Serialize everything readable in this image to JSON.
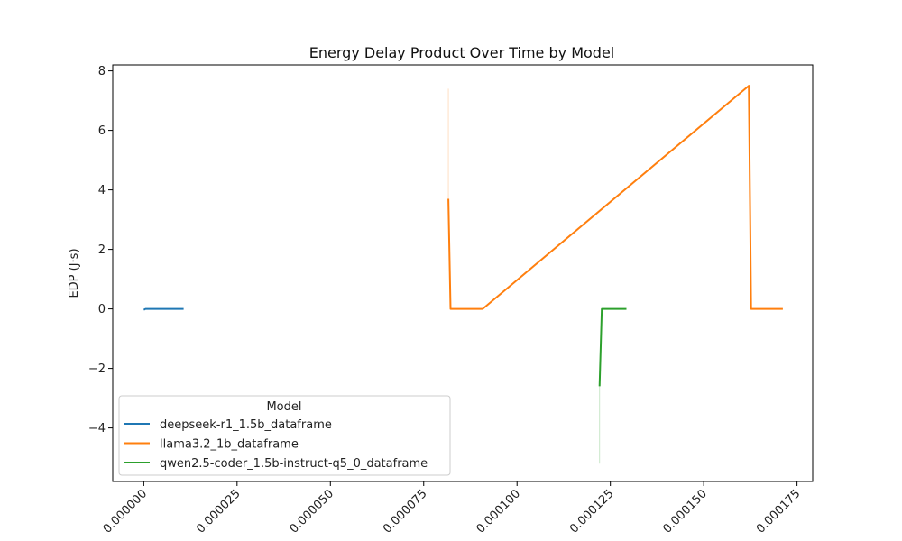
{
  "chart_data": {
    "type": "line",
    "title": "Energy Delay Product Over Time by Model",
    "xlabel": "",
    "ylabel": "EDP (J·s)",
    "xlim": [
      -8.3e-06,
      0.0001792
    ],
    "ylim": [
      -5.8,
      8.2
    ],
    "x_ticks": [
      0,
      2.5e-05,
      5e-05,
      7.5e-05,
      0.0001,
      0.000125,
      0.00015,
      0.000175
    ],
    "x_tick_labels": [
      "0.000000",
      "0.000025",
      "0.000050",
      "0.000075",
      "0.000100",
      "0.000125",
      "0.000150",
      "0.000175"
    ],
    "y_ticks": [
      -4,
      -2,
      0,
      2,
      4,
      6,
      8
    ],
    "y_tick_labels": [
      "−4",
      "−2",
      "0",
      "2",
      "4",
      "6",
      "8"
    ],
    "grid": false,
    "legend": {
      "title": "Model",
      "placement": "lower-left"
    },
    "series": [
      {
        "name": "deepseek-r1_1.5b_dataframe",
        "color": "#1f77b4",
        "points": [
          [
            0.0,
            -0.03
          ],
          [
            5e-07,
            0.0
          ],
          [
            1.07e-05,
            0.0
          ]
        ],
        "band": null
      },
      {
        "name": "llama3.2_1b_dataframe",
        "color": "#ff7f0e",
        "points": [
          [
            8.16e-05,
            3.7
          ],
          [
            8.22e-05,
            0.0
          ],
          [
            9.08e-05,
            0.0
          ],
          [
            0.0001621,
            7.5
          ],
          [
            0.0001627,
            0.0
          ],
          [
            0.0001712,
            0.0
          ]
        ],
        "band": [
          8.16e-05,
          3.7,
          7.4
        ]
      },
      {
        "name": "qwen2.5-coder_1.5b-instruct-q5_0_dataframe",
        "color": "#2ca02c",
        "points": [
          [
            0.0001221,
            -2.6
          ],
          [
            0.0001227,
            0.0
          ],
          [
            0.0001293,
            0.0
          ]
        ],
        "band": [
          0.0001221,
          -5.2,
          -2.6
        ]
      }
    ]
  }
}
